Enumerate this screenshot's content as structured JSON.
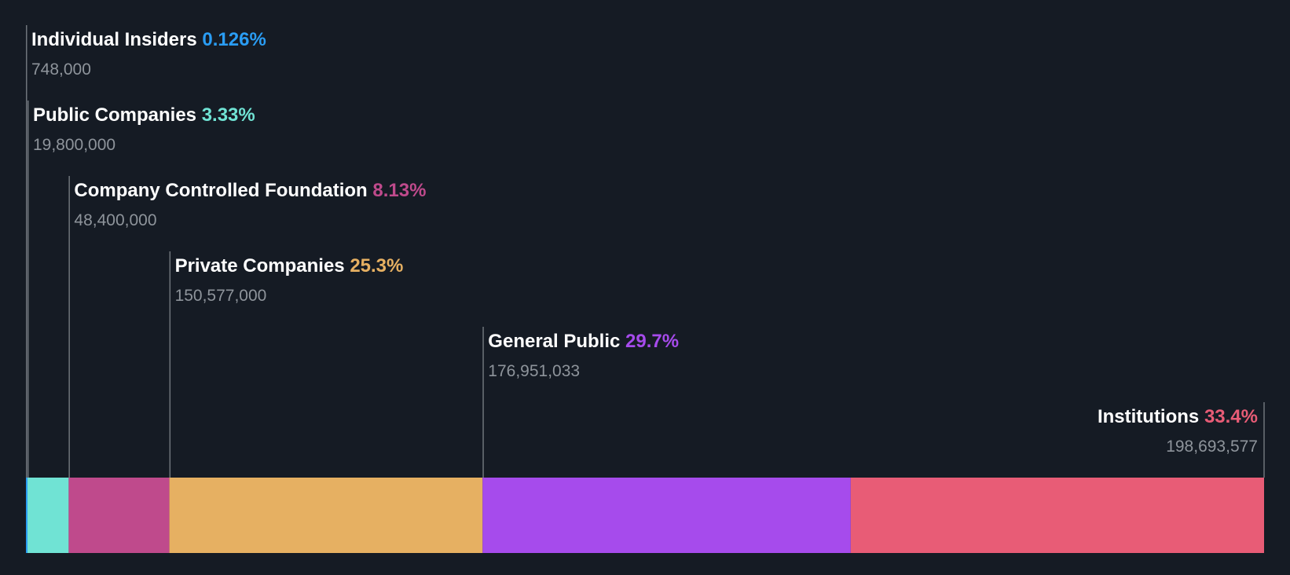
{
  "chart_data": {
    "type": "bar",
    "subtype": "stacked-horizontal-100",
    "title": "",
    "xlabel": "",
    "ylabel": "",
    "background": "#151b24",
    "segments": [
      {
        "name": "Individual Insiders",
        "percent_label": "0.126%",
        "percent": 0.126,
        "shares_label": "748,000",
        "shares": 748000,
        "color": "#2a9df4"
      },
      {
        "name": "Public Companies",
        "percent_label": "3.33%",
        "percent": 3.33,
        "shares_label": "19,800,000",
        "shares": 19800000,
        "color": "#70e3d4"
      },
      {
        "name": "Company Controlled Foundation",
        "percent_label": "8.13%",
        "percent": 8.13,
        "shares_label": "48,400,000",
        "shares": 48400000,
        "color": "#bf4a8c"
      },
      {
        "name": "Private Companies",
        "percent_label": "25.3%",
        "percent": 25.3,
        "shares_label": "150,577,000",
        "shares": 150577000,
        "color": "#e6b062"
      },
      {
        "name": "General Public",
        "percent_label": "29.7%",
        "percent": 29.7,
        "shares_label": "176,951,033",
        "shares": 176951033,
        "color": "#a64bec"
      },
      {
        "name": "Institutions",
        "percent_label": "33.4%",
        "percent": 33.4,
        "shares_label": "198,693,577",
        "shares": 198693577,
        "color": "#e85c76"
      }
    ]
  }
}
